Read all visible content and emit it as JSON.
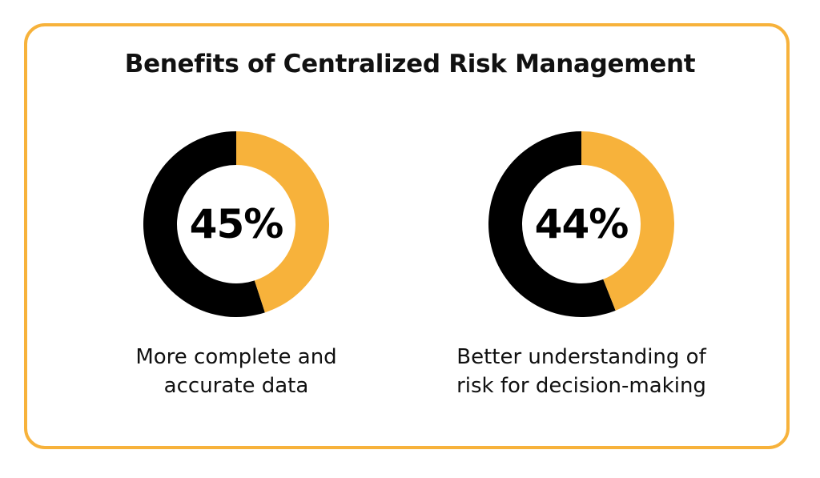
{
  "title": "Benefits of Centralized Risk Management",
  "colors": {
    "accent": "#f7b23b",
    "dark": "#000000",
    "border": "#f7b23b"
  },
  "chart_data": [
    {
      "type": "pie",
      "variant": "donut",
      "value": 45,
      "remainder": 55,
      "center_label": "45%",
      "caption_lines": [
        "More complete and",
        "accurate data"
      ]
    },
    {
      "type": "pie",
      "variant": "donut",
      "value": 44,
      "remainder": 56,
      "center_label": "44%",
      "caption_lines": [
        "Better understanding of",
        "risk for decision-making"
      ]
    }
  ]
}
